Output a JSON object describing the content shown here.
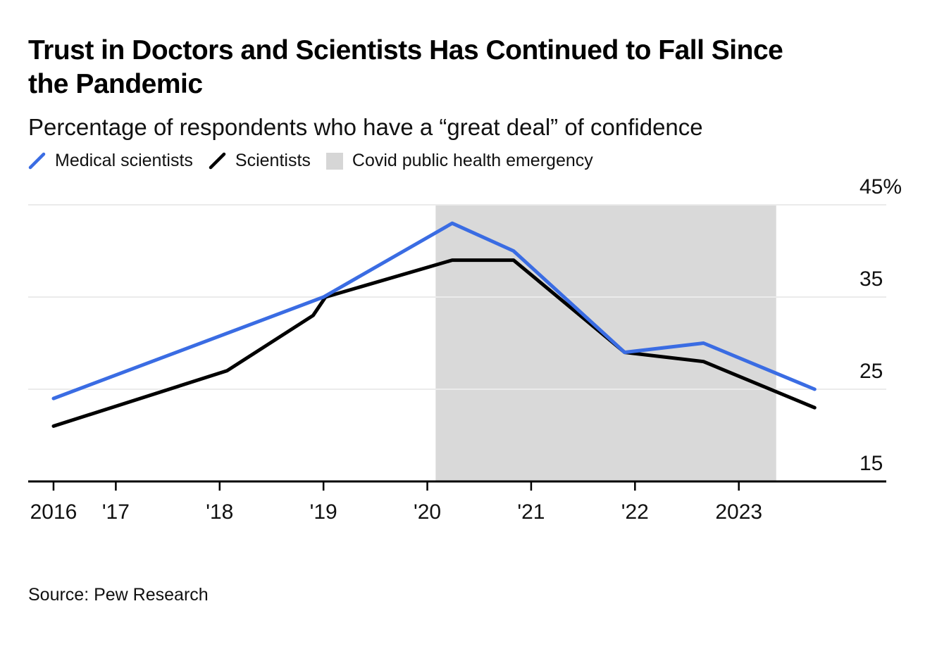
{
  "header": {
    "title_lines": [
      "Trust in Doctors and Scientists Has Continued to Fall Since",
      "the Pandemic"
    ],
    "subtitle": "Percentage of respondents who have a “great deal” of confidence"
  },
  "legend": {
    "items": [
      {
        "label": "Medical scientists",
        "marker": "slash",
        "color": "#3A6CE3"
      },
      {
        "label": "Scientists",
        "marker": "slash",
        "color": "#000000"
      },
      {
        "label": "Covid public health emergency",
        "marker": "square",
        "color": "#D6D6D6"
      }
    ]
  },
  "source": "Source: Pew Research",
  "colors": {
    "medical_line": "#3A6CE3",
    "scientists_line": "#000000",
    "covid_band": "#D9D9D9",
    "gridline": "#EBEBEB",
    "axis": "#000000"
  },
  "chart_data": {
    "type": "line",
    "title": "Trust in Doctors and Scientists Has Continued to Fall Since the Pandemic",
    "subtitle": "Percentage of respondents who have a “great deal” of confidence",
    "xlabel": "",
    "ylabel": "",
    "x_range": [
      2016.156,
      2024.42
    ],
    "y_range": [
      15,
      45
    ],
    "grid": true,
    "legend_position": "top",
    "y_axis_side": "right",
    "x_ticks": [
      {
        "v": 2016.4,
        "label": "2016"
      },
      {
        "v": 2017.0,
        "label": "'17"
      },
      {
        "v": 2018.0,
        "label": "'18"
      },
      {
        "v": 2019.0,
        "label": "'19"
      },
      {
        "v": 2020.0,
        "label": "'20"
      },
      {
        "v": 2021.0,
        "label": "'21"
      },
      {
        "v": 2022.0,
        "label": "'22"
      },
      {
        "v": 2023.0,
        "label": "2023"
      }
    ],
    "y_ticks": [
      {
        "v": 45,
        "label": "45%"
      },
      {
        "v": 35,
        "label": "35"
      },
      {
        "v": 25,
        "label": "25"
      },
      {
        "v": 15,
        "label": "15"
      }
    ],
    "band": {
      "label": "Covid public health emergency",
      "x_from": 2020.08,
      "x_to": 2023.36,
      "color": "#D9D9D9"
    },
    "series": [
      {
        "name": "Medical scientists",
        "color": "#3A6CE3",
        "points": [
          [
            2016.4,
            24
          ],
          [
            2019.0,
            35
          ],
          [
            2020.24,
            43
          ],
          [
            2020.83,
            40
          ],
          [
            2021.9,
            29
          ],
          [
            2022.66,
            30
          ],
          [
            2023.73,
            25
          ]
        ]
      },
      {
        "name": "Scientists",
        "color": "#000000",
        "points": [
          [
            2016.4,
            21
          ],
          [
            2018.07,
            27
          ],
          [
            2018.9,
            33
          ],
          [
            2019.02,
            35
          ],
          [
            2020.24,
            39
          ],
          [
            2020.83,
            39
          ],
          [
            2021.9,
            29
          ],
          [
            2022.66,
            28
          ],
          [
            2023.73,
            23
          ]
        ]
      }
    ]
  }
}
